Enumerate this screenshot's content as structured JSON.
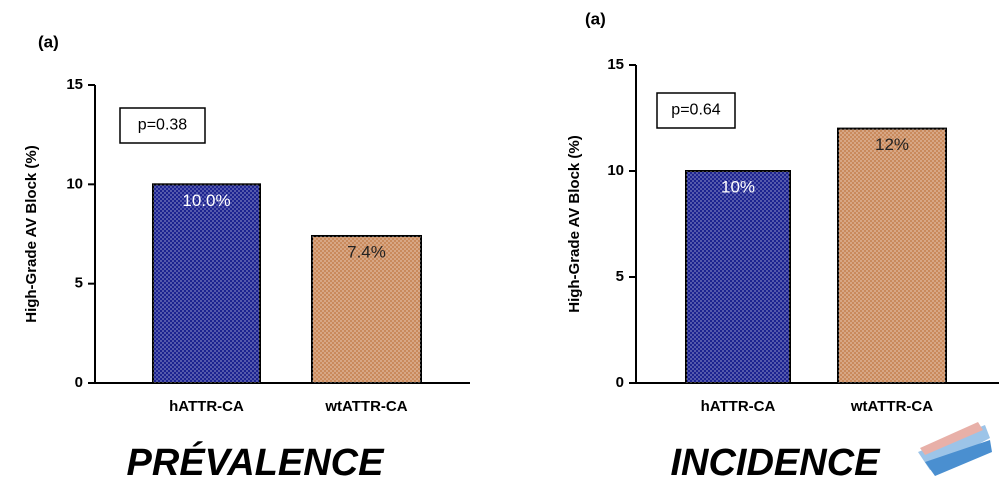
{
  "chart_data": [
    {
      "type": "bar",
      "panel_label": "(a)",
      "y_label": "High-Grade AV Block (%)",
      "annotation": "p=0.38",
      "caption": "PRÉVALENCE",
      "categories": [
        "hATTR-CA",
        "wtATTR-CA"
      ],
      "values": [
        10.0,
        7.4
      ],
      "value_labels": [
        "10.0%",
        "7.4%"
      ],
      "colors": [
        "#1c2390",
        "#c98a5c"
      ],
      "ylim": [
        0,
        15
      ],
      "yticks": [
        0,
        5,
        10,
        15
      ]
    },
    {
      "type": "bar",
      "panel_label": "(a)",
      "y_label": "High-Grade AV Block (%)",
      "annotation": "p=0.64",
      "caption": "INCIDENCE",
      "categories": [
        "hATTR-CA",
        "wtATTR-CA"
      ],
      "values": [
        10,
        12
      ],
      "value_labels": [
        "10%",
        "12%"
      ],
      "colors": [
        "#1c2390",
        "#c98a5c"
      ],
      "ylim": [
        0,
        15
      ],
      "yticks": [
        0,
        5,
        10,
        15
      ]
    }
  ]
}
